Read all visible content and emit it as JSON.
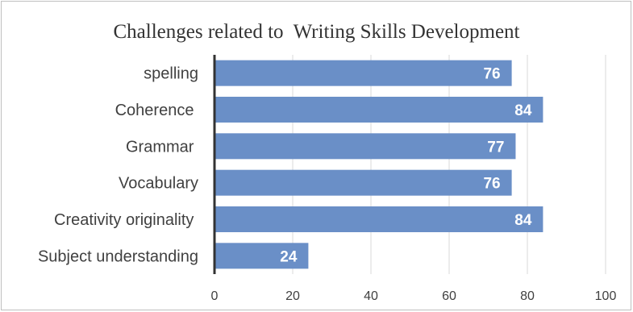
{
  "chart_data": {
    "type": "bar",
    "orientation": "horizontal",
    "title": "Challenges related to  Writing Skills Development",
    "categories": [
      "spelling",
      "Coherence ",
      "Grammar ",
      "Vocabulary",
      "Creativity originality ",
      "Subject understanding"
    ],
    "values": [
      76,
      84,
      77,
      76,
      84,
      24
    ],
    "xlim": [
      0,
      100
    ],
    "xticks": [
      0,
      20,
      40,
      60,
      80,
      100
    ],
    "grid": true,
    "legend": "none",
    "data_labels": "inside-end",
    "bar_color": "#6a8fc7",
    "axis_color": "#333333",
    "grid_color": "#d9d9d9"
  }
}
